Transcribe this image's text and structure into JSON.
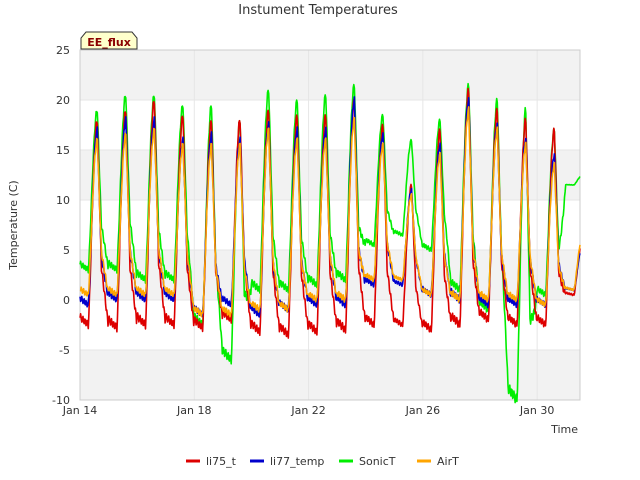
{
  "chart_data": {
    "type": "line",
    "title": "Instument Temperatures",
    "xlabel": "Time",
    "ylabel": "Temperature (C)",
    "badge": "EE_flux",
    "ylim": [
      -10,
      25
    ],
    "yticks": [
      -10,
      -5,
      0,
      5,
      10,
      15,
      20,
      25
    ],
    "xlim": [
      "2013-01-14",
      "2013-01-31T12:00"
    ],
    "xticks": [
      {
        "date": "2013-01-14",
        "label": "Jan 14"
      },
      {
        "date": "2013-01-18",
        "label": "Jan 18"
      },
      {
        "date": "2013-01-22",
        "label": "Jan 22"
      },
      {
        "date": "2013-01-26",
        "label": "Jan 26"
      },
      {
        "date": "2013-01-30",
        "label": "Jan 30"
      }
    ],
    "grid": "alternating horizontal bands",
    "legend_position": "bottom",
    "colors": {
      "band": "#f2f2f2",
      "grid": "#e6e6e6",
      "badge_fill": "#ffffcc"
    },
    "daily_extremes": {
      "dates": [
        "Jan 14",
        "Jan 15",
        "Jan 16",
        "Jan 17",
        "Jan 18",
        "Jan 19",
        "Jan 20",
        "Jan 21",
        "Jan 22",
        "Jan 23",
        "Jan 24",
        "Jan 25",
        "Jan 26",
        "Jan 27",
        "Jan 28",
        "Jan 29",
        "Jan 30",
        "Jan 31"
      ],
      "series": [
        {
          "name": "li75_t",
          "color": "#dd0000",
          "max": [
            18,
            19,
            20,
            18.5,
            18,
            18,
            19,
            18.5,
            18.5,
            20,
            17.5,
            11.5,
            17,
            21,
            19,
            18,
            17,
            6
          ],
          "min": [
            -2.5,
            -2.8,
            -2.5,
            -2.5,
            -2.8,
            -2.0,
            -3.2,
            -3.5,
            -3.2,
            -3.0,
            -2.5,
            -2.5,
            -3.0,
            -2.5,
            -2.0,
            -2.5,
            -2.5,
            0.5
          ]
        },
        {
          "name": "li77_temp",
          "color": "#0000cc",
          "max": [
            17,
            18,
            18,
            16,
            16.5,
            16,
            17.5,
            17,
            17,
            20,
            16.5,
            11,
            15.5,
            20,
            17.5,
            16,
            14.5,
            5.5
          ],
          "min": [
            -0.5,
            0,
            0,
            0,
            -1.5,
            -0.5,
            -1.5,
            -1,
            -0.5,
            -0.5,
            1.5,
            1.5,
            0.5,
            0,
            -0.5,
            -0.5,
            -0.5,
            1
          ]
        },
        {
          "name": "SonicT",
          "color": "#00ee00",
          "max": [
            19,
            20.5,
            20.5,
            19.5,
            19.5,
            18,
            21,
            20,
            20.5,
            21.5,
            18.5,
            16,
            18,
            21.5,
            20,
            19,
            17,
            12.5
          ],
          "min": [
            3,
            3,
            2,
            2,
            -2.5,
            -6,
            1,
            1,
            1.5,
            2,
            5.5,
            6.5,
            5,
            1,
            -1,
            -10,
            0.5,
            11.5
          ]
        },
        {
          "name": "AirT",
          "color": "#ffa500",
          "max": [
            16,
            16.5,
            17,
            15.5,
            15.5,
            15.5,
            17,
            16,
            16,
            18,
            15.5,
            10.5,
            14.5,
            19,
            17,
            15.5,
            13.5,
            6.5
          ],
          "min": [
            0.5,
            0.5,
            0.5,
            0.5,
            -1.5,
            -1.5,
            -1,
            -1,
            0,
            0,
            2,
            2,
            0.5,
            0,
            0,
            0,
            -0.5,
            1
          ]
        }
      ]
    }
  }
}
